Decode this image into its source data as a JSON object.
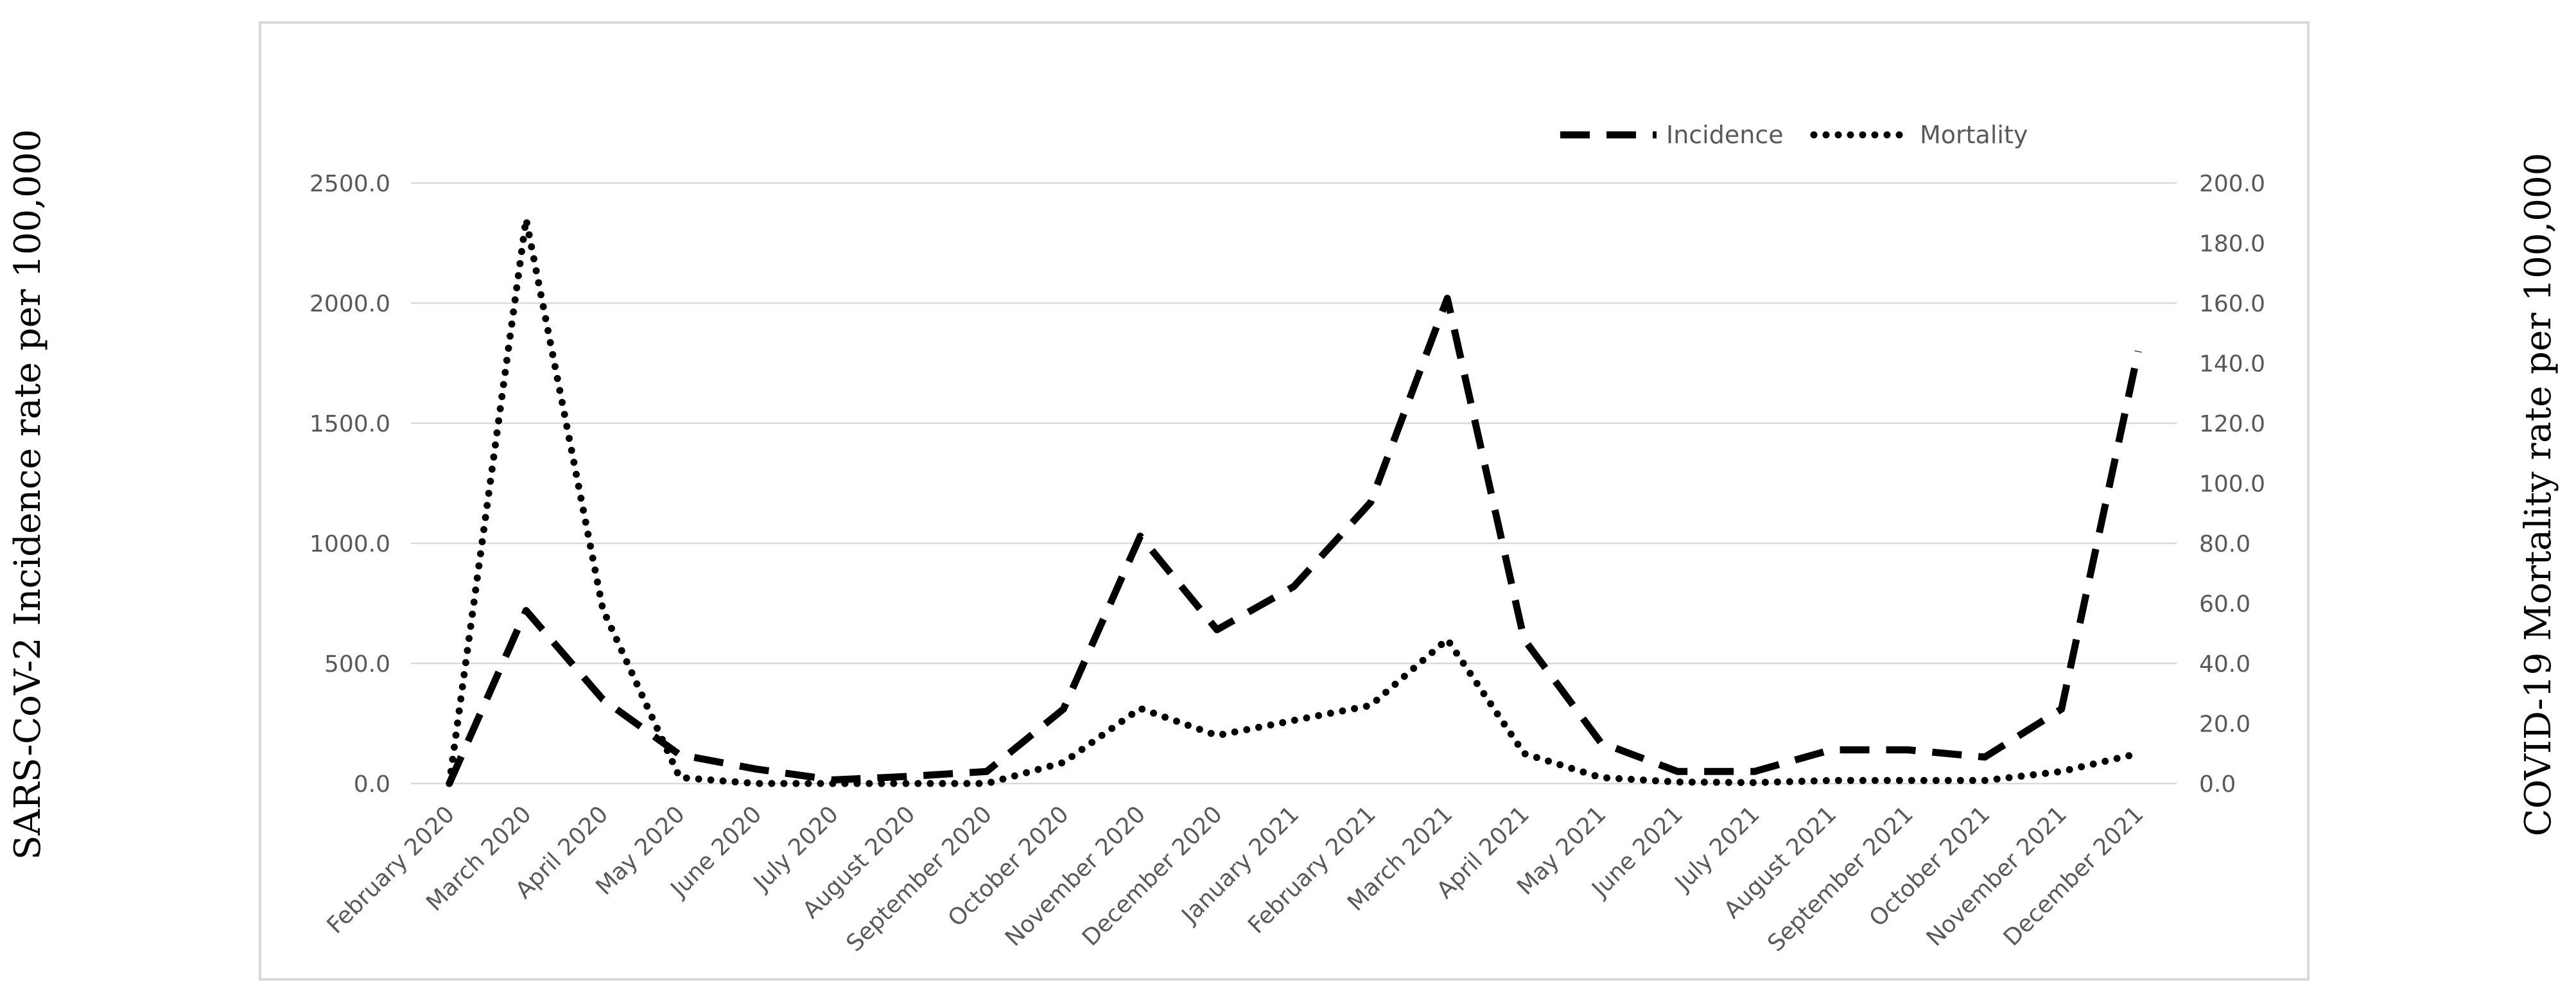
{
  "chart_data": {
    "type": "line",
    "title": "",
    "ylabel": "SARS-CoV-2 Incidence rate per 100,000",
    "y2label": "COVID-19 Mortality rate per 100,000",
    "xlabel": "",
    "ylim": [
      0,
      2500
    ],
    "y2lim": [
      0,
      200
    ],
    "y_ticks": [
      "0.0",
      "500.0",
      "1000.0",
      "1500.0",
      "2000.0",
      "2500.0"
    ],
    "y2_ticks": [
      "0.0",
      "20.0",
      "40.0",
      "60.0",
      "80.0",
      "100.0",
      "120.0",
      "140.0",
      "160.0",
      "180.0",
      "200.0"
    ],
    "grid": true,
    "legend_position": "top-right",
    "categories": [
      "February 2020",
      "March 2020",
      "April 2020",
      "May 2020",
      "June 2020",
      "July 2020",
      "August 2020",
      "September 2020",
      "October 2020",
      "November 2020",
      "December 2020",
      "January 2021",
      "February 2021",
      "March 2021",
      "April 2021",
      "May 2021",
      "June 2021",
      "July 2021",
      "August 2021",
      "September 2021",
      "October 2021",
      "November 2021",
      "December 2021"
    ],
    "series": [
      {
        "name": "Incidence",
        "axis": "left",
        "style": "dashed",
        "color": "#000000",
        "values": [
          0,
          720,
          350,
          120,
          60,
          15,
          30,
          50,
          310,
          1030,
          640,
          820,
          1170,
          2020,
          600,
          170,
          50,
          50,
          140,
          140,
          110,
          310,
          1800
        ]
      },
      {
        "name": "Mortality",
        "axis": "right",
        "style": "dotted",
        "color": "#000000",
        "values": [
          0,
          188,
          58,
          2,
          0,
          0,
          0,
          0,
          7,
          25,
          16,
          21,
          26,
          48,
          10,
          2,
          0.5,
          0.3,
          1,
          1,
          1,
          4,
          10
        ]
      }
    ]
  }
}
